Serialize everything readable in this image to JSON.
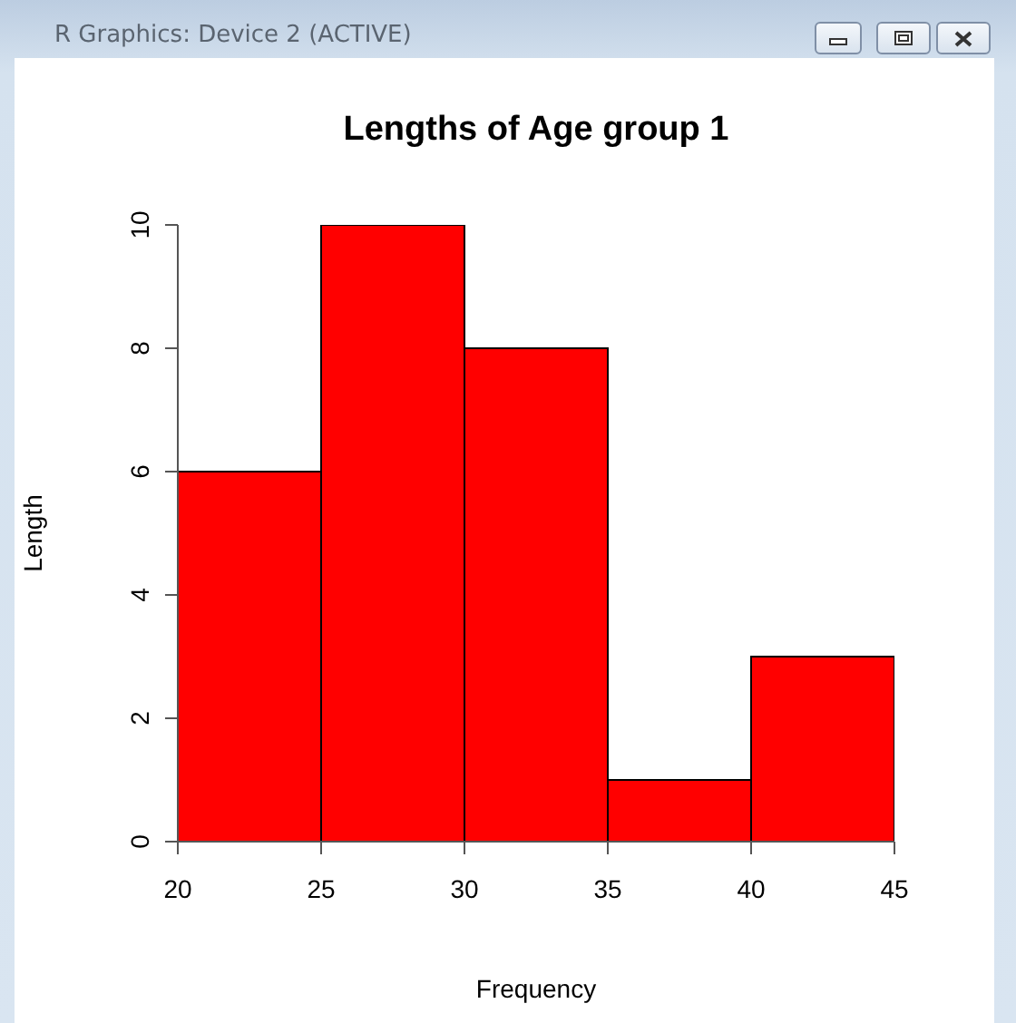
{
  "chart_data": {
    "type": "histogram",
    "title": "Lengths of Age group 1",
    "xlabel": "Frequency",
    "ylabel": "Length",
    "bins": [
      20,
      25,
      30,
      35,
      40,
      45
    ],
    "values": [
      6,
      10,
      8,
      1,
      3
    ],
    "color": "#ff0000",
    "xlim": [
      20,
      45
    ],
    "ylim": [
      0,
      10
    ],
    "xticks": [
      20,
      25,
      30,
      35,
      40,
      45
    ],
    "yticks": [
      0,
      2,
      4,
      6,
      8,
      10
    ],
    "annotations": [
      "R Graphics: Device 2 (ACTIVE)"
    ]
  }
}
